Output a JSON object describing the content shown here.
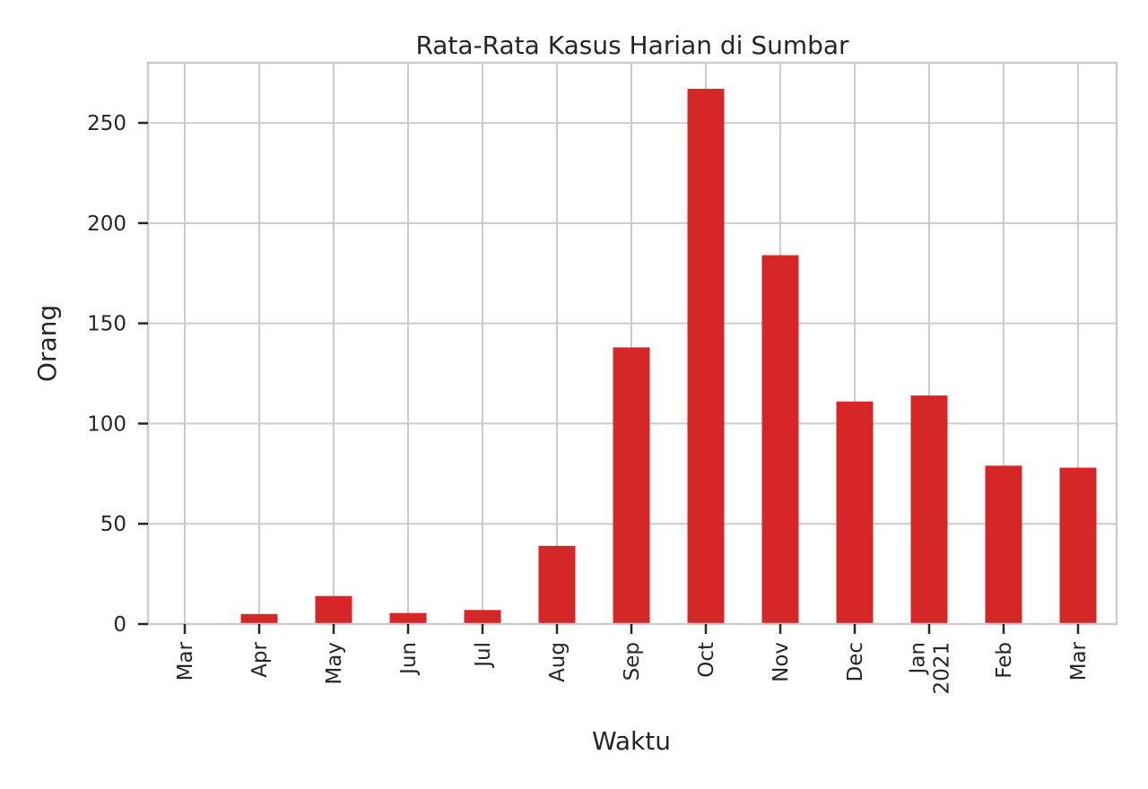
{
  "chart_data": {
    "type": "bar",
    "title": "Rata-Rata Kasus Harian di Sumbar",
    "xlabel": "Waktu",
    "ylabel": "Orang",
    "categories": [
      "Mar",
      "Apr",
      "May",
      "Jun",
      "Jul",
      "Aug",
      "Sep",
      "Oct",
      "Nov",
      "Dec",
      "Jan\n2021",
      "Feb",
      "Mar"
    ],
    "values": [
      0.3,
      5,
      14,
      5.5,
      7,
      39,
      138,
      267,
      184,
      111,
      114,
      79,
      78
    ],
    "ylim": [
      0,
      280
    ],
    "yticks": [
      0,
      50,
      100,
      150,
      200,
      250
    ],
    "grid": true,
    "bar_color": "#d62728"
  }
}
